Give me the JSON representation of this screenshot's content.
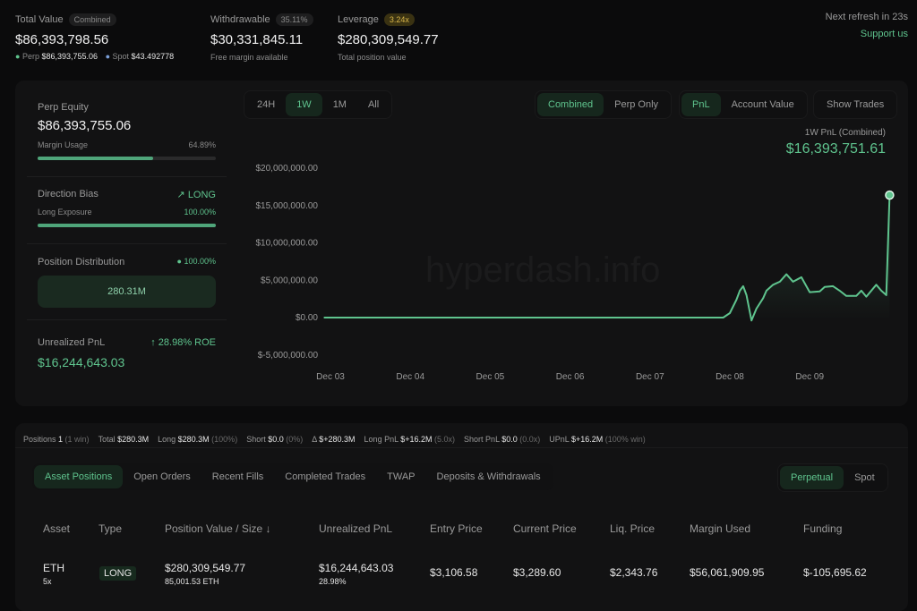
{
  "summary": {
    "total_value": {
      "label": "Total Value",
      "badge": "Combined",
      "value": "$86,393,798.56",
      "perp_label": "Perp",
      "perp_value": "$86,393,755.06",
      "spot_label": "Spot",
      "spot_value": "$43.492778"
    },
    "withdrawable": {
      "label": "Withdrawable",
      "badge": "35.11%",
      "value": "$30,331,845.11",
      "note": "Free margin available"
    },
    "leverage": {
      "label": "Leverage",
      "badge": "3.24x",
      "value": "$280,309,549.77",
      "note": "Total position value"
    },
    "refresh": "Next refresh in 23s",
    "support": "Support us"
  },
  "left": {
    "perp_equity_label": "Perp Equity",
    "perp_equity": "$86,393,755.06",
    "margin_usage_label": "Margin Usage",
    "margin_usage": "64.89%",
    "margin_usage_pct": 64.89,
    "direction_label": "Direction Bias",
    "direction": "LONG",
    "long_exposure_label": "Long Exposure",
    "long_exposure": "100.00%",
    "long_exposure_pct": 100,
    "distribution_label": "Position Distribution",
    "distribution_pct": "100.00%",
    "distribution_value": "280.31M",
    "upnl_label": "Unrealized PnL",
    "roe": "28.98% ROE",
    "upnl": "$16,244,643.03"
  },
  "chart_controls": {
    "ranges": [
      "24H",
      "1W",
      "1M",
      "All"
    ],
    "range_selected": "1W",
    "modes": [
      "Combined",
      "Perp Only"
    ],
    "mode_selected": "Combined",
    "metrics": [
      "PnL",
      "Account Value"
    ],
    "metric_selected": "PnL",
    "show_trades": "Show Trades",
    "pnl_label": "1W PnL (Combined)",
    "pnl_value": "$16,393,751.61",
    "watermark": "hyperdash.info"
  },
  "chart_data": {
    "type": "area",
    "ylim": [
      -5000000,
      20000000
    ],
    "yticks": [
      "$20,000,000.00",
      "$15,000,000.00",
      "$10,000,000.00",
      "$5,000,000.00",
      "$0.00",
      "$-5,000,000.00"
    ],
    "ytick_values": [
      20000000,
      15000000,
      10000000,
      5000000,
      0,
      -5000000
    ],
    "xticks": [
      "Dec 03",
      "Dec 04",
      "Dec 05",
      "Dec 06",
      "Dec 07",
      "Dec 08",
      "Dec 09"
    ],
    "color": "#5fc48e",
    "grid": false,
    "points": [
      [
        "Dec 02 22:00",
        0
      ],
      [
        "Dec 07 22:00",
        0
      ],
      [
        "Dec 08 00:00",
        600000
      ],
      [
        "Dec 08 02:00",
        2400000
      ],
      [
        "Dec 08 03:00",
        3600000
      ],
      [
        "Dec 08 04:00",
        4200000
      ],
      [
        "Dec 08 05:00",
        3000000
      ],
      [
        "Dec 08 06:30",
        -400000
      ],
      [
        "Dec 08 08:00",
        1200000
      ],
      [
        "Dec 08 10:00",
        2600000
      ],
      [
        "Dec 08 11:00",
        3600000
      ],
      [
        "Dec 08 13:00",
        4400000
      ],
      [
        "Dec 08 15:00",
        4800000
      ],
      [
        "Dec 08 17:00",
        5800000
      ],
      [
        "Dec 08 19:00",
        4800000
      ],
      [
        "Dec 08 21:30",
        5400000
      ],
      [
        "Dec 09 00:00",
        3400000
      ],
      [
        "Dec 09 03:00",
        3500000
      ],
      [
        "Dec 09 04:30",
        4100000
      ],
      [
        "Dec 09 07:00",
        4200000
      ],
      [
        "Dec 09 09:00",
        3600000
      ],
      [
        "Dec 09 11:00",
        2900000
      ],
      [
        "Dec 09 14:00",
        2900000
      ],
      [
        "Dec 09 15:30",
        3600000
      ],
      [
        "Dec 09 17:00",
        2800000
      ],
      [
        "Dec 09 20:00",
        4400000
      ],
      [
        "Dec 09 21:30",
        3600000
      ],
      [
        "Dec 09 23:00",
        3000000
      ],
      [
        "Dec 10 00:00",
        16393751.61
      ]
    ]
  },
  "stats": [
    {
      "label": "Positions",
      "value": "1",
      "extra": "(1 win)",
      "cls": ""
    },
    {
      "label": "Total",
      "value": "$280.3M",
      "extra": "",
      "cls": ""
    },
    {
      "label": "Long",
      "value": "$280.3M",
      "extra": "(100%)",
      "cls": ""
    },
    {
      "label": "Short",
      "value": "$0.0",
      "extra": "(0%)",
      "cls": ""
    },
    {
      "label": "Δ",
      "value": "$+280.3M",
      "extra": "",
      "cls": "green"
    },
    {
      "label": "Long PnL",
      "value": "$+16.2M",
      "extra": "(5.0x)",
      "cls": "green"
    },
    {
      "label": "Short PnL",
      "value": "$0.0",
      "extra": "(0.0x)",
      "cls": "green"
    },
    {
      "label": "UPnL",
      "value": "$+16.2M",
      "extra": "(100% win)",
      "cls": "green"
    }
  ],
  "tabs": [
    "Asset Positions",
    "Open Orders",
    "Recent Fills",
    "Completed Trades",
    "TWAP",
    "Deposits & Withdrawals"
  ],
  "tab_selected": "Asset Positions",
  "market_tabs": [
    "Perpetual",
    "Spot"
  ],
  "columns": [
    "Asset",
    "Type",
    "Position Value / Size ↓",
    "Unrealized PnL",
    "Entry Price",
    "Current Price",
    "Liq. Price",
    "Margin Used",
    "Funding"
  ],
  "rows": [
    {
      "asset": "ETH",
      "leverage": "5x",
      "type": "LONG",
      "value": "$280,309,549.77",
      "size": "85,001.53 ETH",
      "upnl": "$16,244,643.03",
      "upnl_pct": "28.98%",
      "entry": "$3,106.58",
      "current": "$3,289.60",
      "liq": "$2,343.76",
      "margin": "$56,061,909.95",
      "funding": "$-105,695.62"
    }
  ]
}
